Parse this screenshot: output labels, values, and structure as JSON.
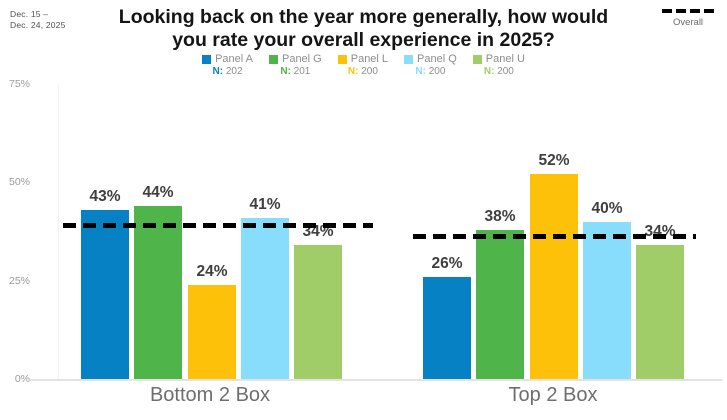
{
  "header": {
    "date_range_line1": "Dec. 15 –",
    "date_range_line2": "Dec. 24, 2025",
    "title_line1": "Looking back on the year more generally, how would",
    "title_line2": "you rate your overall experience in 2025?"
  },
  "legend": {
    "n_prefix": "N:"
  },
  "chart_data": {
    "type": "bar",
    "title": "Looking back on the year more generally, how would you rate your overall experience in 2025?",
    "categories": [
      "Bottom 2 Box",
      "Top 2 Box"
    ],
    "series": [
      {
        "name": "Panel A",
        "n": 202,
        "color": "#0681C4",
        "values": [
          43,
          26
        ]
      },
      {
        "name": "Panel G",
        "n": 201,
        "color": "#4FB44A",
        "values": [
          44,
          38
        ]
      },
      {
        "name": "Panel L",
        "n": 200,
        "color": "#FEC10A",
        "values": [
          24,
          52
        ]
      },
      {
        "name": "Panel Q",
        "n": 200,
        "color": "#87DDFB",
        "values": [
          41,
          40
        ]
      },
      {
        "name": "Panel U",
        "n": 200,
        "color": "#A1CD69",
        "values": [
          34,
          34
        ]
      }
    ],
    "overall_line": {
      "label": "Overall",
      "style": "dashed",
      "color": "#000000",
      "values": [
        39,
        36
      ]
    },
    "value_suffix": "%",
    "y_axis": {
      "ticks": [
        "75%",
        "50%",
        "25%",
        "0%"
      ],
      "tick_values": [
        75,
        50,
        25,
        0
      ],
      "ylim": [
        0,
        75
      ],
      "grid": false
    },
    "legend_position": "top"
  }
}
